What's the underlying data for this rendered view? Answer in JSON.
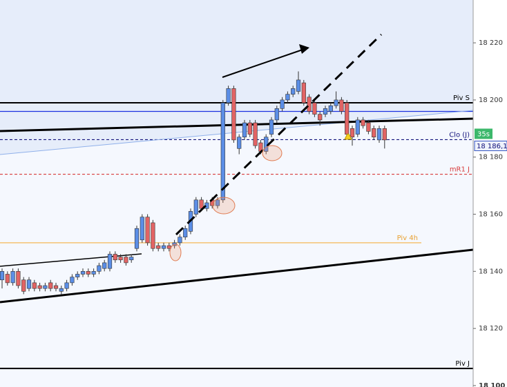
{
  "chart_data": {
    "type": "candlestick",
    "open": [
      18137,
      18139,
      18136,
      18140,
      18137,
      18134,
      18136,
      18135,
      18134,
      18136,
      18135,
      18133,
      18134,
      18136,
      18138,
      18139,
      18140,
      18139,
      18140,
      18141,
      18141,
      18146,
      18145,
      18145,
      18144,
      18148,
      18151,
      18159,
      18157,
      18149,
      18148,
      18149,
      18149,
      18150,
      18152,
      18154,
      18160,
      18165,
      18162,
      18165,
      18163,
      18165,
      18199,
      18204,
      18183,
      18187,
      18192,
      18192,
      18185,
      18182,
      18188,
      18193,
      18197,
      18200,
      18202,
      18203,
      18206,
      18201,
      18199,
      18195,
      18195,
      18196,
      18198,
      18200,
      18199,
      18190,
      18188,
      18193,
      18192,
      18190,
      18186,
      18190
    ],
    "high": [
      18141,
      18140,
      18141,
      18141,
      18138,
      18138,
      18137,
      18136,
      18136,
      18137,
      18136,
      18135,
      18137,
      18139,
      18140,
      18141,
      18141,
      18141,
      18143,
      18144,
      18147,
      18147,
      18146,
      18146,
      18146,
      18156,
      18160,
      18160,
      18158,
      18150,
      18150,
      18150,
      18151,
      18153,
      18156,
      18162,
      18166,
      18166,
      18165,
      18166,
      18166,
      18200,
      18205,
      18205,
      18188,
      18193,
      18193,
      18193,
      18186,
      18188,
      18194,
      18198,
      18201,
      18203,
      18205,
      18210,
      18207,
      18202,
      18200,
      18196,
      18198,
      18199,
      18203,
      18201,
      18200,
      18191,
      18194,
      18194,
      18193,
      18191,
      18191,
      18191
    ],
    "low": [
      18134,
      18135,
      18135,
      18134,
      18132,
      18133,
      18133,
      18133,
      18133,
      18133,
      18133,
      18132,
      18133,
      18135,
      18137,
      18138,
      18138,
      18138,
      18139,
      18140,
      18140,
      18143,
      18143,
      18142,
      18143,
      18147,
      18150,
      18149,
      18147,
      18147,
      18147,
      18147,
      18148,
      18149,
      18151,
      18153,
      18159,
      18161,
      18161,
      18162,
      18162,
      18164,
      18198,
      18185,
      18181,
      18186,
      18187,
      18183,
      18181,
      18181,
      18187,
      18192,
      18196,
      18199,
      18201,
      18202,
      18198,
      18195,
      18194,
      18191,
      18194,
      18195,
      18197,
      18195,
      18187,
      18184,
      18187,
      18190,
      18188,
      18186,
      18185,
      18183
    ],
    "close": [
      18140,
      18136,
      18140,
      18135,
      18133,
      18137,
      18134,
      18134,
      18135,
      18134,
      18134,
      18134,
      18136,
      18138,
      18139,
      18140,
      18139,
      18140,
      18142,
      18143,
      18146,
      18144,
      18144,
      18143,
      18145,
      18155,
      18159,
      18150,
      18148,
      18148,
      18149,
      18148,
      18150,
      18152,
      18155,
      18161,
      18165,
      18162,
      18164,
      18163,
      18165,
      18199,
      18204,
      18186,
      18187,
      18192,
      18188,
      18184,
      18182,
      18187,
      18193,
      18197,
      18200,
      18202,
      18204,
      18207,
      18199,
      18196,
      18195,
      18193,
      18197,
      18198,
      18200,
      18196,
      18188,
      18187,
      18193,
      18191,
      18189,
      18187,
      18190,
      18186
    ],
    "up_color": "#5b8ee6",
    "down_color": "#e26464",
    "ylim": [
      18099.5,
      18235
    ],
    "yticks": [
      {
        "value": 18100,
        "label": "18 100"
      },
      {
        "value": 18120,
        "label": "18 120"
      },
      {
        "value": 18140,
        "label": "18 140"
      },
      {
        "value": 18160,
        "label": "18 160"
      },
      {
        "value": 18180,
        "label": "18 180"
      },
      {
        "value": 18200,
        "label": "18 200"
      },
      {
        "value": 18220,
        "label": "18 220"
      }
    ],
    "levels": [
      {
        "name": "Piv S",
        "value": 18199,
        "color": "#000000"
      },
      {
        "value": 18196,
        "color": "#1a2fe0"
      },
      {
        "name": "Clo (J)",
        "value": 18186.1,
        "value_label": "18 186,1",
        "color": "#10107a",
        "dashed": true
      },
      {
        "name": "mR1 J",
        "value": 18174,
        "color": "#d83a3a",
        "dashed": true
      },
      {
        "name": "Piv 4h",
        "value": 18150,
        "color": "#f5b042"
      },
      {
        "name": "Piv J",
        "value": 18106,
        "color": "#000000"
      }
    ],
    "timer": "35s"
  }
}
